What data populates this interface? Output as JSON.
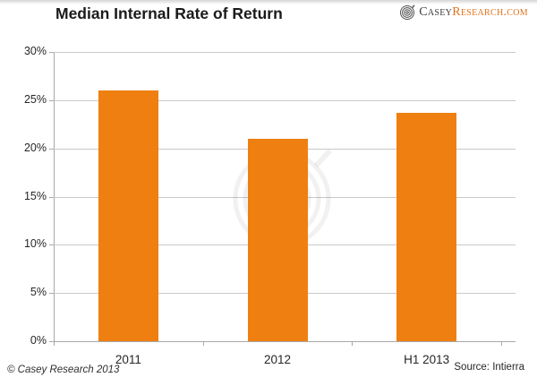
{
  "header": {
    "title": "Median Internal Rate of Return",
    "logo": {
      "brand_primary": "Casey",
      "brand_secondary": "Research.com",
      "primary_color": "#3c3c3c",
      "secondary_color": "#e0731d"
    }
  },
  "chart_data": {
    "type": "bar",
    "title": "Median Internal Rate of Return",
    "categories": [
      "2011",
      "2012",
      "H1 2013"
    ],
    "values": [
      26,
      21,
      23.7
    ],
    "unit": "%",
    "xlabel": "",
    "ylabel": "",
    "ylim": [
      0,
      30
    ],
    "ytick_step": 5,
    "ytick_labels_top_down": [
      "30%",
      "25%",
      "20%",
      "15%",
      "10%",
      "5%",
      "0%"
    ],
    "grid": true,
    "legend": false,
    "bar_color": "#EF7F10",
    "gridline_color": "#C9C9C9",
    "axis_color": "#A8A8A8",
    "watermark": "casey-research-swirl"
  },
  "footer": {
    "copyright": "© Casey Research 2013",
    "source": "Source: Intierra"
  }
}
